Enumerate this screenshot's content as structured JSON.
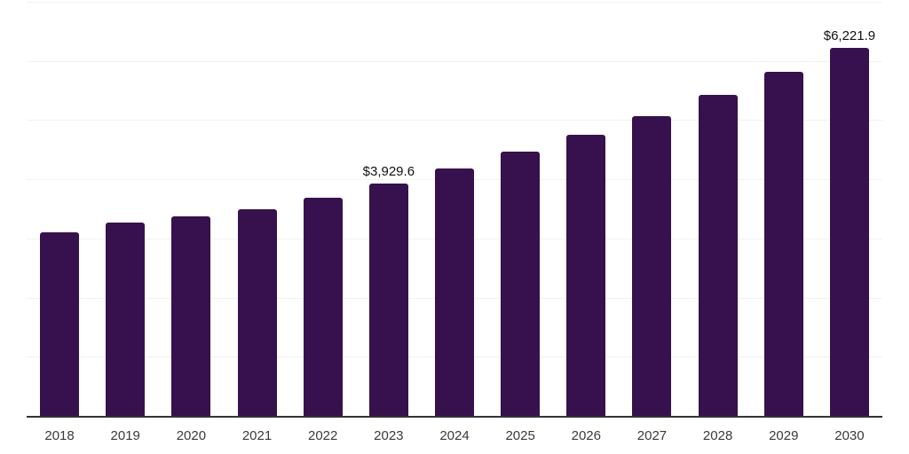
{
  "chart_data": {
    "type": "bar",
    "title": "",
    "xlabel": "",
    "ylabel": "",
    "categories": [
      "2018",
      "2019",
      "2020",
      "2021",
      "2022",
      "2023",
      "2024",
      "2025",
      "2026",
      "2027",
      "2028",
      "2029",
      "2030"
    ],
    "values": [
      3100,
      3265,
      3375,
      3495,
      3690,
      3929.6,
      4185,
      4465,
      4750,
      5065,
      5425,
      5815,
      6221.9
    ],
    "annotations": [
      {
        "category": "2023",
        "label": "$3,929.6"
      },
      {
        "category": "2030",
        "label": "$6,221.9"
      }
    ],
    "ylim": [
      0,
      7000
    ],
    "gridline_interval": 1000,
    "grid": "horizontal",
    "legend": "none",
    "y_tick_labels_visible": false,
    "colors": {
      "bar": "#36114E",
      "gridline": "#f2f2f2",
      "axis_line": "#333333",
      "tick_label": "#3a3a3a",
      "data_label": "#111111",
      "background": "#ffffff"
    }
  }
}
